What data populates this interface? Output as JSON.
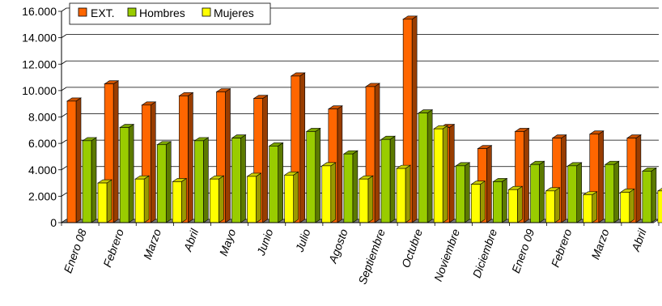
{
  "chart_data": {
    "type": "bar",
    "categories": [
      "Enero 08",
      "Febrero",
      "Marzo",
      "Abril",
      "Mayo",
      "Junio",
      "Julio",
      "Agosto",
      "Septiembre",
      "Octubre",
      "Noviembre",
      "Diciembre",
      "Enero 09",
      "Febrero",
      "Marzo",
      "Abril"
    ],
    "series": [
      {
        "name": "EXT.",
        "color": "#FF6600",
        "values": [
          9200,
          10500,
          8900,
          9600,
          9900,
          9400,
          11100,
          8600,
          10300,
          15400,
          7200,
          5600,
          6900,
          6400,
          6700,
          6400
        ]
      },
      {
        "name": "Hombres",
        "color": "#99CC00",
        "values": [
          6200,
          7200,
          5900,
          6200,
          6400,
          5800,
          6900,
          5200,
          6300,
          8300,
          4300,
          3100,
          4400,
          4300,
          4400,
          3900
        ]
      },
      {
        "name": "Mujeres",
        "color": "#FFFF00",
        "values": [
          3000,
          3300,
          3100,
          3300,
          3500,
          3600,
          4300,
          3300,
          4100,
          7100,
          2900,
          2500,
          2400,
          2100,
          2300,
          2400
        ]
      }
    ],
    "yticks": [
      "0",
      "2.000",
      "4.000",
      "6.000",
      "8.000",
      "10.000",
      "12.000",
      "14.000",
      "16.000"
    ],
    "ylim": [
      0,
      16000
    ],
    "legend": "top-left",
    "grid": true
  }
}
